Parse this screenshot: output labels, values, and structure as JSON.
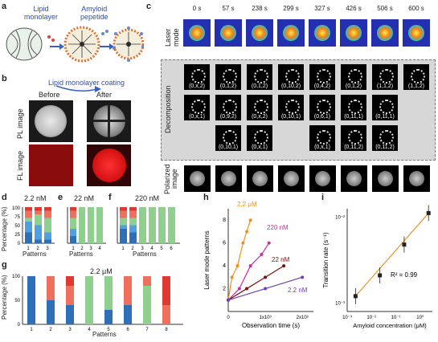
{
  "panel_labels": {
    "a": "a",
    "b": "b",
    "c": "c",
    "d": "d",
    "e": "e",
    "f": "f",
    "g": "g",
    "h": "h",
    "i": "i"
  },
  "panel_a": {
    "lipid_label_1": "Lipid",
    "lipid_label_2": "monolayer",
    "amyloid_label_1": "Amyloid",
    "amyloid_label_2": "pepetide"
  },
  "panel_b": {
    "title": "Lipid monolayer coating",
    "before": "Before",
    "after": "After",
    "row1": "PL image",
    "row2": "FL image"
  },
  "panel_c": {
    "times": [
      "0 s",
      "57 s",
      "238 s",
      "299 s",
      "327 s",
      "426 s",
      "506 s",
      "600 s"
    ],
    "row_laser": "Laser mode",
    "row_decomp": "Decomposition",
    "row_polar": "Polarized image",
    "decomp_row1": [
      "(0,x,2)",
      "(0,1,2)",
      "(0,1,2)",
      "(0,10,2)",
      "(0,4,2)",
      "(0,1,2)",
      "(1,1,2)",
      "(1,1,2)"
    ],
    "decomp_row2": [
      "(0,x,1)",
      "(0,9,2)",
      "(0,x,2)",
      "(0,10,1)",
      "(0,6,1)",
      "(0,11,1)",
      "(0,11,1)",
      ""
    ],
    "decomp_row3": [
      "",
      "(0,10,1)",
      "(0,x,1)",
      "",
      "(0,x,1)",
      "(0,11,2)",
      "(0,11,2)",
      ""
    ]
  },
  "panel_d": {
    "conc": "2.2 nM",
    "ylabel": "Percentage (%)",
    "xlabel": "Patterns",
    "xticks": [
      "1",
      "2",
      "3"
    ],
    "yticks": [
      "0",
      "25",
      "50",
      "75",
      "100"
    ]
  },
  "panel_e": {
    "conc": "22 nM",
    "xlabel": "Patterns",
    "xticks": [
      "1",
      "2",
      "3",
      "4"
    ]
  },
  "panel_f": {
    "conc": "220 nM",
    "xlabel": "Patterns",
    "xticks": [
      "1",
      "2",
      "3",
      "4",
      "5",
      "6"
    ]
  },
  "panel_g": {
    "conc": "2.2 μM",
    "ylabel": "Percentage (%)",
    "xlabel": "Patterns",
    "xticks": [
      "1",
      "2",
      "3",
      "4",
      "5",
      "6",
      "7",
      "8"
    ],
    "yticks": [
      "0",
      "50",
      "100"
    ]
  },
  "chart_data": [
    {
      "type": "line",
      "panel": "h",
      "xlabel": "Observation time (s)",
      "ylabel": "Laser mode patterns",
      "xticks": [
        "0",
        "1x10³",
        "2x10³"
      ],
      "yticks": [
        "2",
        "4",
        "6",
        "8"
      ],
      "xlim": [
        0,
        2300
      ],
      "ylim": [
        0,
        9
      ],
      "series": [
        {
          "name": "2.2 μM",
          "color": "#f0901e",
          "x": [
            0,
            100,
            250,
            400,
            500,
            600
          ],
          "y": [
            1,
            3,
            4,
            6,
            7,
            8
          ]
        },
        {
          "name": "220 nM",
          "color": "#c030a0",
          "x": [
            0,
            300,
            600,
            900,
            1100
          ],
          "y": [
            1,
            2,
            4,
            5,
            6
          ]
        },
        {
          "name": "22 nM",
          "color": "#7a1010",
          "x": [
            0,
            500,
            1000,
            1500
          ],
          "y": [
            1,
            2,
            3,
            4
          ]
        },
        {
          "name": "2.2 nM",
          "color": "#7040b0",
          "x": [
            0,
            1000,
            2000
          ],
          "y": [
            1,
            2,
            3
          ]
        }
      ]
    },
    {
      "type": "scatter",
      "panel": "i",
      "xlabel": "Amyloid concentration (μM)",
      "ylabel": "Transition rate (s⁻¹)",
      "xticks": [
        "10⁻³",
        "10⁻²",
        "10⁻¹",
        "10⁰"
      ],
      "yticks": [
        "10⁻³",
        "10⁻²"
      ],
      "annotation": "R² = 0.99",
      "x": [
        0.0022,
        0.022,
        0.22,
        2.2
      ],
      "y": [
        0.0012,
        0.0021,
        0.0048,
        0.0112
      ]
    }
  ]
}
